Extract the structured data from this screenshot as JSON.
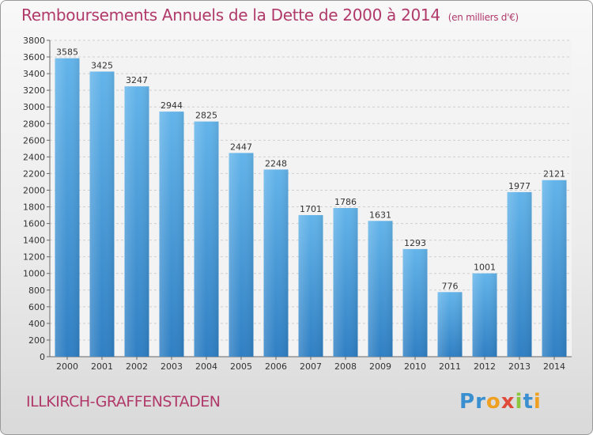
{
  "title": "Remboursements Annuels de la Dette de 2000 à 2014",
  "unit": "(en milliers d'€)",
  "city": "ILLKIRCH-GRAFFENSTADEN",
  "logo_text": "Proxiti",
  "colors": {
    "title": "#b0396a",
    "bar_top": "#63b4ea",
    "bar_bottom": "#2f7fc3"
  },
  "chart_data": {
    "type": "bar",
    "title": "Remboursements Annuels de la Dette de 2000 à 2014",
    "xlabel": "",
    "ylabel": "",
    "categories": [
      "2000",
      "2001",
      "2002",
      "2003",
      "2004",
      "2005",
      "2006",
      "2007",
      "2008",
      "2009",
      "2010",
      "2011",
      "2012",
      "2013",
      "2014"
    ],
    "values": [
      3585,
      3425,
      3247,
      2944,
      2825,
      2447,
      2248,
      1701,
      1786,
      1631,
      1293,
      776,
      1001,
      1977,
      2121
    ],
    "ylim": [
      0,
      3800
    ],
    "yticks": [
      0,
      200,
      400,
      600,
      800,
      1000,
      1200,
      1400,
      1600,
      1800,
      2000,
      2200,
      2400,
      2600,
      2800,
      3000,
      3200,
      3400,
      3600,
      3800
    ],
    "grid": true,
    "legend": "none"
  }
}
